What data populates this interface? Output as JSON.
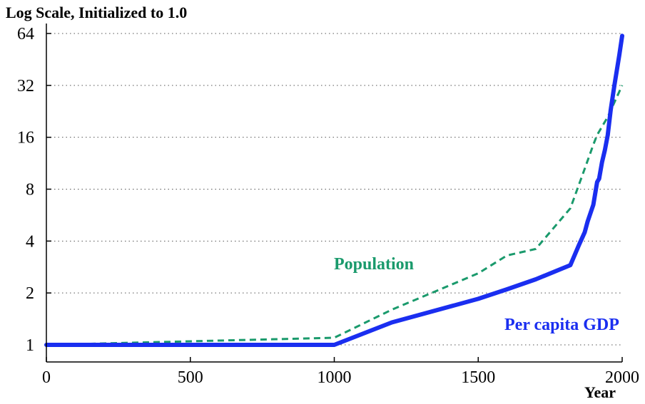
{
  "chart_data": {
    "type": "line",
    "title": "Log Scale, Initialized to 1.0",
    "xlabel": "Year",
    "ylabel": "",
    "xlim": [
      0,
      2000
    ],
    "ylim": [
      0.8,
      70
    ],
    "yscale": "log2",
    "grid": "horizontal dotted",
    "x_ticks": [
      0,
      500,
      1000,
      1500,
      2000
    ],
    "y_ticks": [
      1,
      2,
      4,
      8,
      16,
      32,
      64
    ],
    "series": [
      {
        "name": "Population",
        "color": "#1a9a6c",
        "style": "dashed",
        "x": [
          0,
          1000,
          1200,
          1500,
          1600,
          1700,
          1820,
          1870,
          1900,
          1913,
          1950,
          2000
        ],
        "y": [
          1.0,
          1.1,
          1.6,
          2.6,
          3.3,
          3.6,
          6.2,
          10.5,
          14.5,
          16.5,
          21,
          32
        ]
      },
      {
        "name": "Per capita GDP",
        "color": "#1a2ef0",
        "style": "solid",
        "x": [
          0,
          1000,
          1200,
          1500,
          1600,
          1700,
          1820,
          1850,
          1870,
          1880,
          1900,
          1913,
          1920,
          1930,
          1940,
          1950,
          1960,
          1973,
          1990,
          2000
        ],
        "y": [
          1.0,
          1.0,
          1.35,
          1.85,
          2.1,
          2.4,
          2.9,
          3.8,
          4.5,
          5.2,
          6.5,
          8.8,
          9.2,
          11.5,
          13.5,
          16.5,
          23,
          32,
          48,
          62
        ]
      }
    ]
  }
}
